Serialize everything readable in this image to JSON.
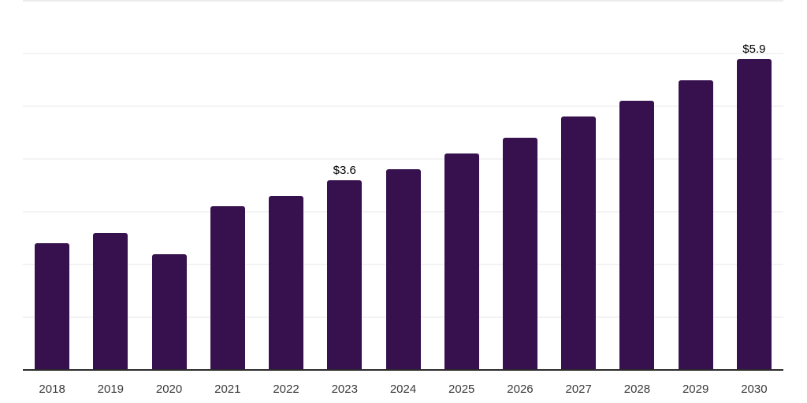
{
  "chart_data": {
    "type": "bar",
    "title": "",
    "xlabel": "",
    "ylabel": "",
    "categories": [
      "2018",
      "2019",
      "2020",
      "2021",
      "2022",
      "2023",
      "2024",
      "2025",
      "2026",
      "2027",
      "2028",
      "2029",
      "2030"
    ],
    "values": [
      2.4,
      2.6,
      2.2,
      3.1,
      3.3,
      3.6,
      3.8,
      4.1,
      4.4,
      4.8,
      5.1,
      5.5,
      5.9
    ],
    "data_labels": [
      "",
      "",
      "",
      "",
      "",
      "$3.6",
      "",
      "",
      "",
      "",
      "",
      "",
      "$5.9"
    ],
    "ylim": [
      0,
      7
    ],
    "grid_step": 1,
    "grid": true,
    "legend_position": "none",
    "colors": {
      "bar": "#36114d",
      "axis": "#2b2b2b",
      "gridline": "#f3f3f3",
      "top_border": "#ececec",
      "tick_label": "#3a3a3a",
      "data_label": "#000000",
      "background": "#ffffff"
    }
  }
}
